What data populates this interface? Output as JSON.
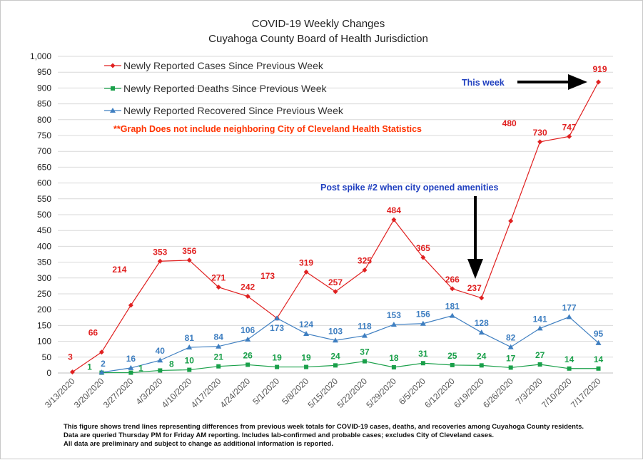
{
  "chart_data": {
    "type": "line",
    "title": [
      "COVID-19 Weekly Changes",
      "Cuyahoga County Board of Health Jurisdiction"
    ],
    "xlabel": "",
    "ylabel": "",
    "ylim": [
      0,
      1000
    ],
    "y_ticks": [
      "0",
      "50",
      "100",
      "150",
      "200",
      "250",
      "300",
      "350",
      "400",
      "450",
      "500",
      "550",
      "600",
      "650",
      "700",
      "750",
      "800",
      "850",
      "900",
      "950",
      "1,000"
    ],
    "grid": "horizontal",
    "legend_position": "top-left",
    "categories": [
      "3/13/2020",
      "3/20/2020",
      "3/27/2020",
      "4/3/2020",
      "4/10/2020",
      "4/17/2020",
      "4/24/2020",
      "5/1/2020",
      "5/8/2020",
      "5/15/2020",
      "5/22/2020",
      "5/29/2020",
      "6/5/2020",
      "6/12/2020",
      "6/19/2020",
      "6/26/2020",
      "7/3/2020",
      "7/10/2020",
      "7/17/2020"
    ],
    "series": [
      {
        "name": "Newly Reported Cases Since Previous Week",
        "color": "#e02020",
        "marker": "diamond",
        "values": [
          3,
          66,
          214,
          353,
          356,
          271,
          242,
          173,
          319,
          257,
          325,
          484,
          365,
          266,
          237,
          480,
          730,
          747,
          919
        ],
        "labels": [
          "3",
          "66",
          "214",
          "353",
          "356",
          "271",
          "242",
          "173",
          "319",
          "257",
          "325",
          "484",
          "365",
          "266",
          "237",
          "480",
          "730",
          "747",
          "919"
        ]
      },
      {
        "name": "Newly Reported Deaths Since Previous Week",
        "color": "#1aa04a",
        "marker": "square",
        "values": [
          null,
          1,
          1,
          8,
          10,
          21,
          26,
          19,
          19,
          24,
          37,
          18,
          31,
          25,
          24,
          17,
          27,
          14,
          14
        ],
        "labels": [
          "",
          "1",
          "1",
          "8",
          "10",
          "21",
          "26",
          "19",
          "19",
          "24",
          "37",
          "18",
          "31",
          "25",
          "24",
          "17",
          "27",
          "14",
          "14"
        ]
      },
      {
        "name": "Newly Reported Recovered Since Previous Week",
        "color": "#3f7fc1",
        "marker": "triangle",
        "values": [
          null,
          2,
          16,
          40,
          81,
          84,
          106,
          173,
          124,
          103,
          118,
          153,
          156,
          181,
          128,
          82,
          141,
          177,
          95
        ],
        "labels": [
          "",
          "2",
          "16",
          "40",
          "81",
          "84",
          "106",
          "173",
          "124",
          "103",
          "118",
          "153",
          "156",
          "181",
          "128",
          "82",
          "141",
          "177",
          "95"
        ]
      }
    ],
    "annotations": {
      "note": "**Graph Does not include neighboring City of Cleveland Health Statistics",
      "this_week": "This week",
      "spike": "Post spike #2 when city opened amenities"
    }
  },
  "footnote": [
    "This figure shows trend lines representing differences from previous week totals for COVID-19 cases, deaths, and recoveries among Cuyahoga County residents.",
    "Data are queried Thursday PM for Friday AM reporting. Includes lab-confirmed and probable cases; excludes City of Cleveland cases.",
    "All data are preliminary and subject to change as additional information is reported."
  ]
}
